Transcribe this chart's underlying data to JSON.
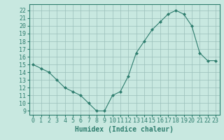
{
  "x": [
    0,
    1,
    2,
    3,
    4,
    5,
    6,
    7,
    8,
    9,
    10,
    11,
    12,
    13,
    14,
    15,
    16,
    17,
    18,
    19,
    20,
    21,
    22,
    23
  ],
  "y": [
    15,
    14.5,
    14,
    13,
    12,
    11.5,
    11,
    10,
    9,
    9,
    11,
    11.5,
    13.5,
    16.5,
    18,
    19.5,
    20.5,
    21.5,
    22,
    21.5,
    20,
    16.5,
    15.5,
    15.5
  ],
  "xlabel": "Humidex (Indice chaleur)",
  "xlim": [
    -0.5,
    23.5
  ],
  "ylim": [
    8.5,
    22.8
  ],
  "yticks": [
    9,
    10,
    11,
    12,
    13,
    14,
    15,
    16,
    17,
    18,
    19,
    20,
    21,
    22
  ],
  "xticks": [
    0,
    1,
    2,
    3,
    4,
    5,
    6,
    7,
    8,
    9,
    10,
    11,
    12,
    13,
    14,
    15,
    16,
    17,
    18,
    19,
    20,
    21,
    22,
    23
  ],
  "line_color": "#2e7d6e",
  "marker_color": "#2e7d6e",
  "bg_color": "#c8e8e0",
  "grid_color": "#9bbfba",
  "axes_color": "#2e7d6e",
  "xlabel_fontsize": 7,
  "tick_fontsize": 6
}
